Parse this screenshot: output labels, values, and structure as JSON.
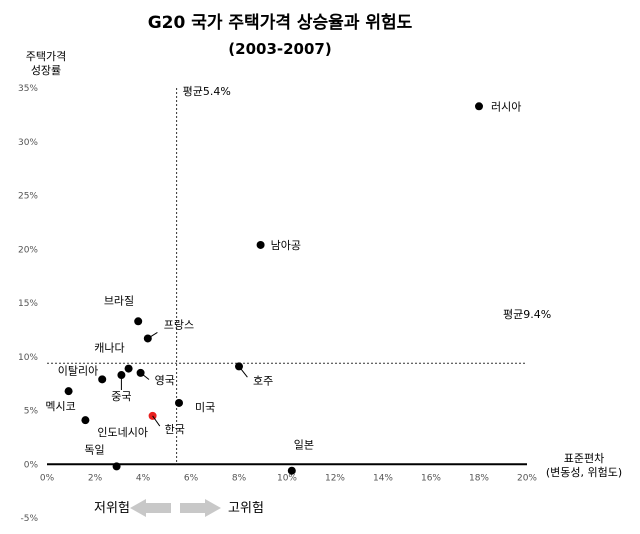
{
  "chart_data": {
    "type": "scatter",
    "title": "G20 국가 주택가격 상승율과 위험도",
    "subtitle": "(2003-2007)",
    "ylabel": [
      "주택가격",
      "성장률"
    ],
    "xlabel": [
      "표준편차",
      "(변동성, 위험도)"
    ],
    "xlim": [
      0,
      20
    ],
    "ylim": [
      -5,
      35
    ],
    "x_ticks": [
      "0%",
      "2%",
      "4%",
      "6%",
      "8%",
      "10%",
      "12%",
      "14%",
      "16%",
      "18%",
      "20%"
    ],
    "y_ticks": [
      "-5%",
      "0%",
      "5%",
      "10%",
      "15%",
      "20%",
      "25%",
      "30%",
      "35%"
    ],
    "grid": false,
    "reference_lines": [
      {
        "axis": "x",
        "value": 5.4,
        "label": "평균5.4%"
      },
      {
        "axis": "y",
        "value": 9.4,
        "label": "평균9.4%"
      }
    ],
    "points": [
      {
        "name": "러시아",
        "x": 18.0,
        "y": 33.3
      },
      {
        "name": "남아공",
        "x": 8.9,
        "y": 20.4
      },
      {
        "name": "브라질",
        "x": 3.8,
        "y": 13.3
      },
      {
        "name": "프랑스",
        "x": 4.2,
        "y": 11.7
      },
      {
        "name": "캐나다",
        "x": 3.4,
        "y": 8.9
      },
      {
        "name": "이탈리아",
        "x": 2.3,
        "y": 7.9
      },
      {
        "name": "중국",
        "x": 3.1,
        "y": 8.3
      },
      {
        "name": "영국",
        "x": 3.9,
        "y": 8.5
      },
      {
        "name": "호주",
        "x": 8.0,
        "y": 9.1
      },
      {
        "name": "멕시코",
        "x": 0.9,
        "y": 6.8
      },
      {
        "name": "미국",
        "x": 5.5,
        "y": 5.7
      },
      {
        "name": "한국",
        "x": 4.4,
        "y": 4.5,
        "highlight": true
      },
      {
        "name": "인도네시아",
        "x": 1.6,
        "y": 4.1
      },
      {
        "name": "독일",
        "x": 2.9,
        "y": -0.2
      },
      {
        "name": "일본",
        "x": 10.2,
        "y": -0.6
      }
    ],
    "arrows": {
      "left": "저위험",
      "right": "고위험"
    },
    "colors": {
      "point": "#000000",
      "highlight": "#e8201f",
      "arrow": "#c8c8c8"
    }
  }
}
